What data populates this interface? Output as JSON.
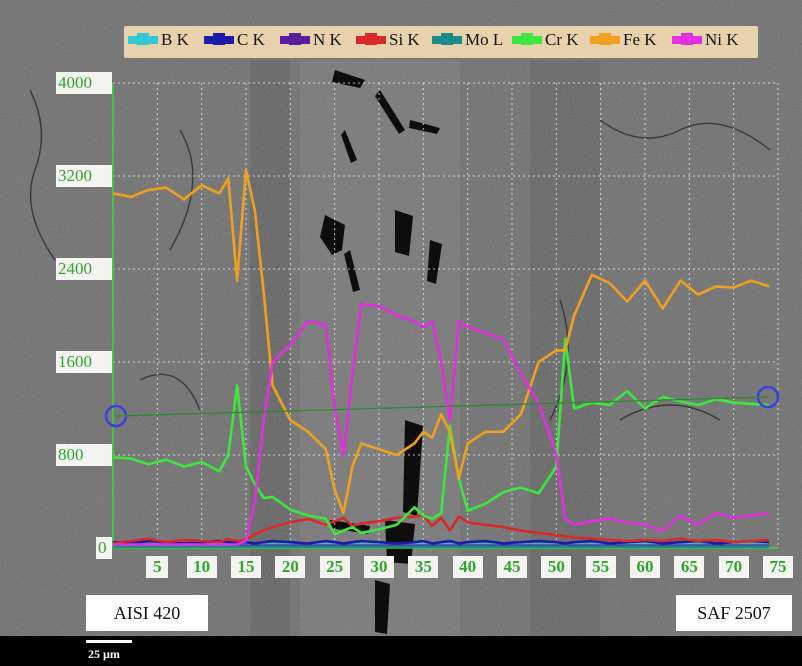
{
  "chart_data": {
    "type": "line",
    "title": "",
    "xlabel": "",
    "ylabel": "",
    "xlim": [
      0,
      75
    ],
    "ylim": [
      0,
      4000
    ],
    "grid": true,
    "legend_placement": "top",
    "x_ticks": [
      "5",
      "10",
      "15",
      "20",
      "25",
      "30",
      "35",
      "40",
      "45",
      "50",
      "55",
      "60",
      "65",
      "70",
      "75"
    ],
    "y_ticks": [
      "0",
      "800",
      "1600",
      "2400",
      "3200",
      "4000"
    ],
    "x": [
      0,
      2,
      4,
      6,
      8,
      10,
      12,
      13,
      14,
      15,
      16,
      17,
      18,
      20,
      22,
      24,
      25,
      26,
      27,
      28,
      30,
      32,
      34,
      35,
      36,
      37,
      38,
      39,
      40,
      42,
      44,
      46,
      48,
      50,
      51,
      52,
      54,
      56,
      58,
      60,
      62,
      64,
      66,
      68,
      70,
      72,
      74
    ],
    "series": [
      {
        "name": "B K",
        "color": "#35c8d6",
        "values": [
          30,
          30,
          30,
          30,
          30,
          30,
          30,
          30,
          30,
          30,
          30,
          30,
          30,
          30,
          30,
          30,
          30,
          30,
          30,
          30,
          30,
          30,
          30,
          30,
          30,
          30,
          30,
          30,
          30,
          30,
          30,
          30,
          30,
          30,
          30,
          30,
          30,
          30,
          30,
          30,
          30,
          30,
          30,
          30,
          30,
          30,
          30
        ]
      },
      {
        "name": "C  K",
        "color": "#1c1ca8",
        "values": [
          50,
          40,
          60,
          50,
          40,
          50,
          60,
          50,
          40,
          50,
          40,
          50,
          60,
          50,
          40,
          60,
          50,
          40,
          50,
          60,
          50,
          40,
          50,
          60,
          40,
          50,
          60,
          40,
          50,
          60,
          40,
          50,
          60,
          50,
          40,
          50,
          60,
          40,
          50,
          60,
          40,
          50,
          60,
          40,
          50,
          60,
          50
        ]
      },
      {
        "name": "N  K",
        "color": "#5a1e9a",
        "values": [
          20,
          20,
          20,
          20,
          20,
          20,
          20,
          20,
          20,
          20,
          20,
          20,
          20,
          20,
          20,
          20,
          20,
          20,
          20,
          20,
          20,
          20,
          20,
          20,
          20,
          20,
          20,
          20,
          20,
          20,
          20,
          20,
          20,
          20,
          20,
          20,
          20,
          20,
          20,
          20,
          20,
          20,
          20,
          20,
          20,
          20,
          20
        ]
      },
      {
        "name": "Si K",
        "color": "#d82a2a",
        "values": [
          40,
          60,
          80,
          50,
          70,
          60,
          50,
          80,
          60,
          70,
          120,
          150,
          180,
          220,
          250,
          200,
          230,
          260,
          190,
          210,
          230,
          260,
          270,
          280,
          190,
          260,
          150,
          270,
          220,
          200,
          180,
          150,
          130,
          110,
          100,
          90,
          80,
          70,
          60,
          70,
          60,
          80,
          60,
          70,
          50,
          60,
          70
        ]
      },
      {
        "name": "Mo L",
        "color": "#1a8a8a",
        "values": [
          10,
          10,
          10,
          10,
          10,
          10,
          10,
          10,
          10,
          10,
          10,
          10,
          10,
          10,
          10,
          10,
          10,
          10,
          10,
          10,
          10,
          10,
          10,
          10,
          10,
          10,
          10,
          10,
          10,
          10,
          10,
          10,
          10,
          10,
          10,
          10,
          10,
          10,
          10,
          10,
          10,
          10,
          10,
          10,
          10,
          10,
          10
        ]
      },
      {
        "name": "Cr K",
        "color": "#3ee63e",
        "values": [
          780,
          770,
          720,
          760,
          700,
          740,
          660,
          800,
          1400,
          700,
          550,
          430,
          440,
          330,
          280,
          250,
          120,
          150,
          180,
          130,
          160,
          200,
          350,
          280,
          250,
          300,
          1050,
          600,
          320,
          380,
          480,
          520,
          470,
          700,
          1800,
          1200,
          1250,
          1230,
          1350,
          1200,
          1300,
          1260,
          1230,
          1280,
          1250,
          1240,
          1230
        ]
      },
      {
        "name": "Fe K",
        "color": "#f0a020",
        "values": [
          3050,
          3020,
          3080,
          3100,
          3000,
          3120,
          3050,
          3180,
          2300,
          3250,
          2900,
          2200,
          1400,
          1100,
          1000,
          850,
          500,
          300,
          700,
          900,
          850,
          800,
          900,
          1000,
          950,
          1150,
          1000,
          600,
          900,
          1000,
          1000,
          1150,
          1600,
          1700,
          1700,
          2000,
          2350,
          2280,
          2120,
          2300,
          2060,
          2300,
          2180,
          2250,
          2240,
          2300,
          2250
        ]
      },
      {
        "name": "Ni K",
        "color": "#e030e0",
        "values": [
          30,
          30,
          30,
          30,
          30,
          30,
          30,
          30,
          30,
          60,
          400,
          1100,
          1600,
          1750,
          1950,
          1920,
          1200,
          800,
          1500,
          2100,
          2080,
          2000,
          1950,
          1900,
          1950,
          1600,
          1100,
          1950,
          1900,
          1850,
          1800,
          1500,
          1250,
          800,
          250,
          200,
          230,
          250,
          220,
          200,
          150,
          280,
          200,
          300,
          260,
          280,
          300
        ]
      }
    ],
    "annotations": [
      "AISI 420",
      "SAF 2507"
    ],
    "scale_bar": "25 µm"
  }
}
